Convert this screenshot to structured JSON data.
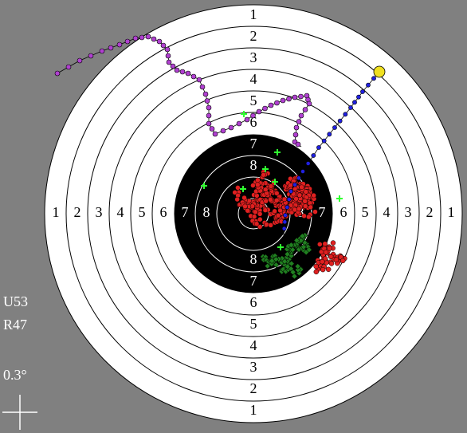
{
  "target": {
    "ring_labels": [
      "1",
      "2",
      "3",
      "4",
      "5",
      "6",
      "7",
      "8"
    ]
  },
  "info": {
    "up": "U53",
    "right": "R47",
    "scale": "0.3°"
  }
}
